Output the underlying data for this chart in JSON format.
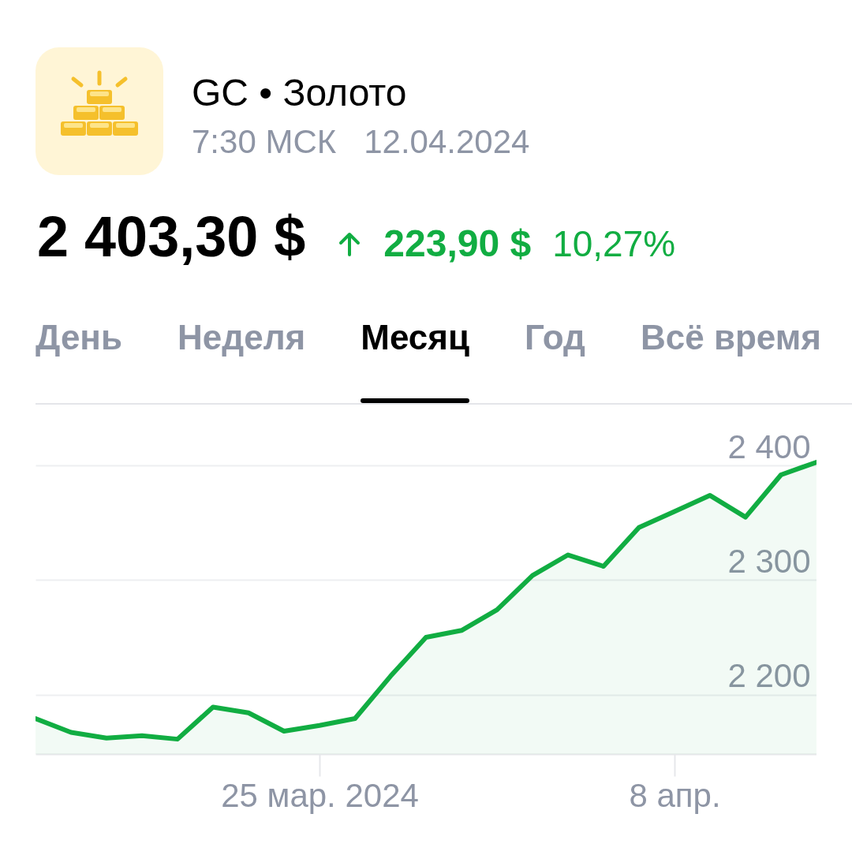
{
  "chart_data": {
    "type": "area",
    "title": "GC • Золото",
    "subtitle": "7:30 МСК   12.04.2024",
    "annotations": [
      "2 403,30 $",
      "223,90 $",
      "10,27%",
      "День",
      "Неделя",
      "Месяц",
      "Год",
      "Всё время"
    ],
    "categories": [
      null,
      null,
      null,
      null,
      null,
      null,
      null,
      null,
      "25 мар. 2024",
      null,
      null,
      null,
      null,
      null,
      null,
      null,
      null,
      null,
      "8 апр.",
      null,
      null,
      null,
      null
    ],
    "color": "#11ad42",
    "values": [
      2179,
      2167,
      2162,
      2164,
      2161,
      2189,
      2184,
      2168,
      2173,
      2179,
      2216,
      2250,
      2256,
      2274,
      2304,
      2322,
      2312,
      2346,
      2360,
      2374,
      2355,
      2392,
      2403
    ],
    "ylim": [
      2148,
      2454
    ],
    "yticks": [
      {
        "value": 2200,
        "label": "2 200"
      },
      {
        "value": 2300,
        "label": "2 300"
      },
      {
        "value": 2400,
        "label": "2 400"
      }
    ],
    "grid": "y"
  }
}
